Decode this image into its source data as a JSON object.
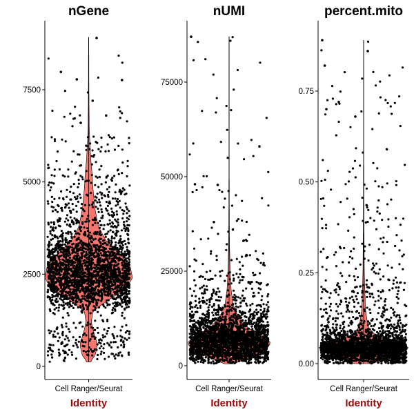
{
  "chart_data": [
    {
      "type": "violin",
      "title": "nGene",
      "xlabel": "Identity",
      "categories": [
        "Cell Ranger/Seurat"
      ],
      "yticks": [
        0,
        2500,
        5000,
        7500
      ],
      "ytick_labels": [
        "0",
        "2500",
        "5000",
        "7500"
      ],
      "ylim": [
        -300,
        9300
      ],
      "violin_fill": "#f8766d",
      "summary": {
        "min": 120,
        "mode": 2500,
        "max": 8920,
        "n_points_approx": 3000
      },
      "density_profile": [
        [
          150,
          0.05
        ],
        [
          300,
          0.15
        ],
        [
          600,
          0.2
        ],
        [
          900,
          0.12
        ],
        [
          1200,
          0.06
        ],
        [
          1500,
          0.1
        ],
        [
          1800,
          0.45
        ],
        [
          2100,
          0.85
        ],
        [
          2400,
          1.0
        ],
        [
          2700,
          0.95
        ],
        [
          3000,
          0.75
        ],
        [
          3400,
          0.4
        ],
        [
          3800,
          0.22
        ],
        [
          4300,
          0.14
        ],
        [
          4800,
          0.1
        ],
        [
          5200,
          0.08
        ],
        [
          5600,
          0.05
        ],
        [
          6000,
          0.03
        ],
        [
          6500,
          0.012
        ],
        [
          7500,
          0.006
        ],
        [
          8900,
          0.003
        ]
      ],
      "outliers": [
        [
          0.15,
          7980
        ],
        [
          0.35,
          7780
        ],
        [
          0.92,
          7760
        ],
        [
          0.55,
          7200
        ],
        [
          0.6,
          8900
        ],
        [
          0.72,
          6800
        ],
        [
          0.4,
          6600
        ]
      ]
    },
    {
      "type": "violin",
      "title": "nUMI",
      "xlabel": "Identity",
      "categories": [
        "Cell Ranger/Seurat"
      ],
      "yticks": [
        0,
        25000,
        50000,
        75000
      ],
      "ytick_labels": [
        "0",
        "25000",
        "50000",
        "75000"
      ],
      "ylim": [
        -3000,
        88000
      ],
      "violin_fill": "#f8766d",
      "summary": {
        "min": 500,
        "mode": 6000,
        "max": 87000,
        "n_points_approx": 3000
      },
      "density_profile": [
        [
          500,
          0.1
        ],
        [
          2000,
          0.45
        ],
        [
          4000,
          0.85
        ],
        [
          6000,
          1.0
        ],
        [
          8000,
          0.8
        ],
        [
          10000,
          0.45
        ],
        [
          13000,
          0.22
        ],
        [
          16000,
          0.1
        ],
        [
          20000,
          0.05
        ],
        [
          25000,
          0.025
        ],
        [
          32000,
          0.01
        ],
        [
          40000,
          0.006
        ],
        [
          50000,
          0.004
        ],
        [
          87000,
          0.002
        ]
      ],
      "outliers": [
        [
          0.0,
          87000
        ],
        [
          0.9,
          58000
        ],
        [
          0.05,
          48000
        ],
        [
          0.35,
          47800
        ],
        [
          0.3,
          38000
        ],
        [
          0.55,
          36000
        ]
      ]
    },
    {
      "type": "violin",
      "title": "percent.mito",
      "xlabel": "Identity",
      "categories": [
        "Cell Ranger/Seurat"
      ],
      "yticks": [
        0.0,
        0.25,
        0.5,
        0.75
      ],
      "ytick_labels": [
        "0.00",
        "0.25",
        "0.50",
        "0.75"
      ],
      "ylim": [
        -0.035,
        0.89
      ],
      "violin_fill": "#f8766d",
      "summary": {
        "min": 0.0,
        "mode": 0.045,
        "max": 0.89,
        "n_points_approx": 3000
      },
      "density_profile": [
        [
          0.0,
          0.2
        ],
        [
          0.02,
          0.6
        ],
        [
          0.04,
          1.0
        ],
        [
          0.05,
          0.95
        ],
        [
          0.06,
          0.6
        ],
        [
          0.08,
          0.25
        ],
        [
          0.1,
          0.1
        ],
        [
          0.15,
          0.04
        ],
        [
          0.25,
          0.015
        ],
        [
          0.4,
          0.006
        ],
        [
          0.6,
          0.003
        ],
        [
          0.89,
          0.002
        ]
      ],
      "outliers": [
        [
          0.0,
          0.89
        ],
        [
          0.55,
          0.86
        ],
        [
          0.03,
          0.82
        ],
        [
          0.2,
          0.72
        ],
        [
          0.05,
          0.7
        ],
        [
          0.4,
          0.68
        ],
        [
          0.78,
          0.59
        ]
      ]
    }
  ]
}
